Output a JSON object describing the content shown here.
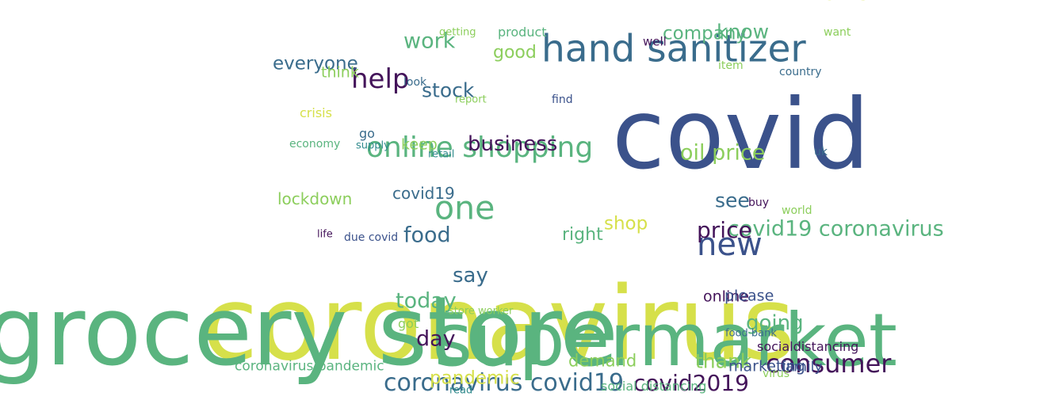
{
  "palette": {
    "dark_purple": "#44145a",
    "indigo": "#3b528b",
    "blue": "#3a6c8c",
    "teal": "#2f8a8c",
    "green": "#5ab47f",
    "light_green": "#8cce5c",
    "yellow": "#d6e04a"
  },
  "words": [
    {
      "text": "coronavirus",
      "color": "yellow"
    },
    {
      "text": "grocery store",
      "color": "green"
    },
    {
      "text": "supermarket",
      "color": "green"
    },
    {
      "text": "covid",
      "color": "indigo"
    },
    {
      "text": "hand sanitizer",
      "color": "blue"
    },
    {
      "text": "online shopping",
      "color": "green"
    },
    {
      "text": "new",
      "color": "indigo"
    },
    {
      "text": "one",
      "color": "green"
    },
    {
      "text": "consumer",
      "color": "dark_purple"
    },
    {
      "text": "coronavirus covid19",
      "color": "blue"
    },
    {
      "text": "covid2019",
      "color": "dark_purple"
    },
    {
      "text": "help",
      "color": "dark_purple"
    },
    {
      "text": "covid19 coronavirus",
      "color": "green"
    },
    {
      "text": "price",
      "color": "dark_purple"
    },
    {
      "text": "business",
      "color": "dark_purple"
    },
    {
      "text": "oil price",
      "color": "light_green"
    },
    {
      "text": "work",
      "color": "green"
    },
    {
      "text": "company",
      "color": "green"
    },
    {
      "text": "know",
      "color": "green"
    },
    {
      "text": "today",
      "color": "green"
    },
    {
      "text": "day",
      "color": "dark_purple"
    },
    {
      "text": "going",
      "color": "green"
    },
    {
      "text": "thank",
      "color": "light_green"
    },
    {
      "text": "food",
      "color": "blue"
    },
    {
      "text": "say",
      "color": "blue"
    },
    {
      "text": "stock",
      "color": "blue"
    },
    {
      "text": "see",
      "color": "blue"
    },
    {
      "text": "everyone",
      "color": "blue"
    },
    {
      "text": "pandemic",
      "color": "yellow"
    },
    {
      "text": "right",
      "color": "green"
    },
    {
      "text": "shop",
      "color": "yellow"
    },
    {
      "text": "good",
      "color": "light_green"
    },
    {
      "text": "demand",
      "color": "light_green"
    },
    {
      "text": "covid19",
      "color": "blue"
    },
    {
      "text": "lockdown",
      "color": "light_green"
    },
    {
      "text": "keep",
      "color": "light_green"
    },
    {
      "text": "online",
      "color": "dark_purple"
    },
    {
      "text": "please",
      "color": "indigo"
    },
    {
      "text": "marketing",
      "color": "indigo"
    },
    {
      "text": "family",
      "color": "indigo"
    },
    {
      "text": "think",
      "color": "light_green"
    },
    {
      "text": "coronavirus pandemic",
      "color": "green"
    },
    {
      "text": "socialdistancing",
      "color": "dark_purple"
    },
    {
      "text": "social distancing",
      "color": "green"
    },
    {
      "text": "product",
      "color": "green"
    },
    {
      "text": "crisis",
      "color": "yellow"
    },
    {
      "text": "life",
      "color": "dark_purple"
    },
    {
      "text": "got",
      "color": "light_green"
    },
    {
      "text": "economy",
      "color": "green"
    },
    {
      "text": "supply",
      "color": "teal"
    },
    {
      "text": "due covid",
      "color": "indigo"
    },
    {
      "text": "go",
      "color": "blue"
    },
    {
      "text": "country",
      "color": "blue"
    },
    {
      "text": "find",
      "color": "indigo"
    },
    {
      "text": "want",
      "color": "light_green"
    },
    {
      "text": "well",
      "color": "dark_purple"
    },
    {
      "text": "world",
      "color": "light_green"
    },
    {
      "text": "virus",
      "color": "light_green"
    },
    {
      "text": "buy",
      "color": "dark_purple"
    },
    {
      "text": "uk",
      "color": "blue"
    },
    {
      "text": "item",
      "color": "light_green"
    },
    {
      "text": "look",
      "color": "blue"
    },
    {
      "text": "retail",
      "color": "teal"
    },
    {
      "text": "getting",
      "color": "light_green"
    },
    {
      "text": "report",
      "color": "light_green"
    },
    {
      "text": "store worker",
      "color": "light_green"
    },
    {
      "text": "food bank",
      "color": "blue"
    },
    {
      "text": "read",
      "color": "teal"
    },
    {
      "text": "home",
      "color": "yellow"
    }
  ]
}
